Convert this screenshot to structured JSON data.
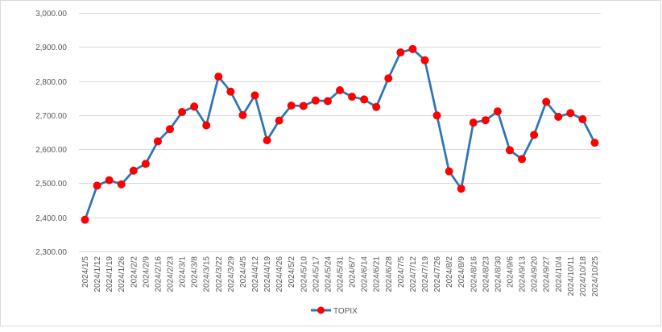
{
  "chart_data": {
    "type": "line",
    "title": "",
    "xlabel": "",
    "ylabel": "",
    "ylim": [
      2300,
      3000
    ],
    "yticks": [
      "2,300.00",
      "2,400.00",
      "2,500.00",
      "2,600.00",
      "2,700.00",
      "2,800.00",
      "2,900.00",
      "3,000.00"
    ],
    "ytick_values": [
      2300,
      2400,
      2500,
      2600,
      2700,
      2800,
      2900,
      3000
    ],
    "grid": true,
    "legend_position": "bottom",
    "categories": [
      "2024/1/5",
      "2024/1/12",
      "2024/1/19",
      "2024/1/26",
      "2024/2/2",
      "2024/2/9",
      "2024/2/16",
      "2024/2/23",
      "2024/3/1",
      "2024/3/8",
      "2024/3/15",
      "2024/3/22",
      "2024/3/29",
      "2024/4/5",
      "2024/4/12",
      "2024/4/19",
      "2024/4/26",
      "2024/5/2",
      "2024/5/10",
      "2024/5/17",
      "2024/5/24",
      "2024/5/31",
      "2024/6/7",
      "2024/6/14",
      "2024/6/21",
      "2024/6/28",
      "2024/7/5",
      "2024/7/12",
      "2024/7/19",
      "2024/7/26",
      "2024/8/2",
      "2024/8/9",
      "2024/8/16",
      "2024/8/23",
      "2024/8/30",
      "2024/9/6",
      "2024/9/13",
      "2024/9/20",
      "2024/9/27",
      "2024/10/4",
      "2024/10/11",
      "2024/10/18",
      "2024/10/25"
    ],
    "series": [
      {
        "name": "TOPIX",
        "line_color": "#2e75b6",
        "marker_color": "#ff0000",
        "values": [
          2393,
          2493,
          2509,
          2497,
          2537,
          2557,
          2623,
          2659,
          2709,
          2725,
          2670,
          2813,
          2769,
          2700,
          2758,
          2626,
          2684,
          2728,
          2727,
          2743,
          2741,
          2773,
          2754,
          2746,
          2724,
          2808,
          2884,
          2894,
          2861,
          2699,
          2535,
          2484,
          2678,
          2685,
          2711,
          2597,
          2571,
          2642,
          2739,
          2695,
          2706,
          2688,
          2619
        ]
      }
    ]
  }
}
